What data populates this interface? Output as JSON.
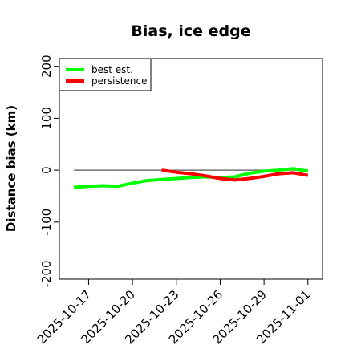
{
  "chart_data": {
    "type": "line",
    "title": "Bias, ice edge",
    "xlabel": "",
    "ylabel": "Distance bias (km)",
    "ylim": [
      -210,
      215
    ],
    "xlim": [
      "2025-10-15",
      "2025-11-02"
    ],
    "x_ticks": [
      "2025-10-17",
      "2025-10-20",
      "2025-10-23",
      "2025-10-26",
      "2025-10-29",
      "2025-11-01"
    ],
    "y_ticks": [
      "-200",
      "-100",
      "0",
      "100",
      "200"
    ],
    "reference_line": 0,
    "legend_position": "top-left",
    "series": [
      {
        "name": "best est.",
        "color": "#00ff00",
        "x": [
          "2025-10-16",
          "2025-10-17",
          "2025-10-18",
          "2025-10-19",
          "2025-10-20",
          "2025-10-21",
          "2025-10-22",
          "2025-10-23",
          "2025-10-24",
          "2025-10-25",
          "2025-10-26",
          "2025-10-27",
          "2025-10-28",
          "2025-10-29",
          "2025-10-30",
          "2025-10-31",
          "2025-11-01"
        ],
        "values": [
          -33,
          -31,
          -30,
          -31,
          -25,
          -20,
          -18,
          -16,
          -14,
          -13,
          -14,
          -13,
          -6,
          -2,
          0,
          3,
          -2
        ]
      },
      {
        "name": "persistence",
        "color": "#ff0000",
        "x": [
          "2025-10-22",
          "2025-10-23",
          "2025-10-24",
          "2025-10-25",
          "2025-10-26",
          "2025-10-27",
          "2025-10-28",
          "2025-10-29",
          "2025-10-30",
          "2025-10-31",
          "2025-11-01"
        ],
        "values": [
          0,
          -4,
          -7,
          -11,
          -16,
          -19,
          -16,
          -12,
          -7,
          -5,
          -10
        ]
      }
    ]
  }
}
